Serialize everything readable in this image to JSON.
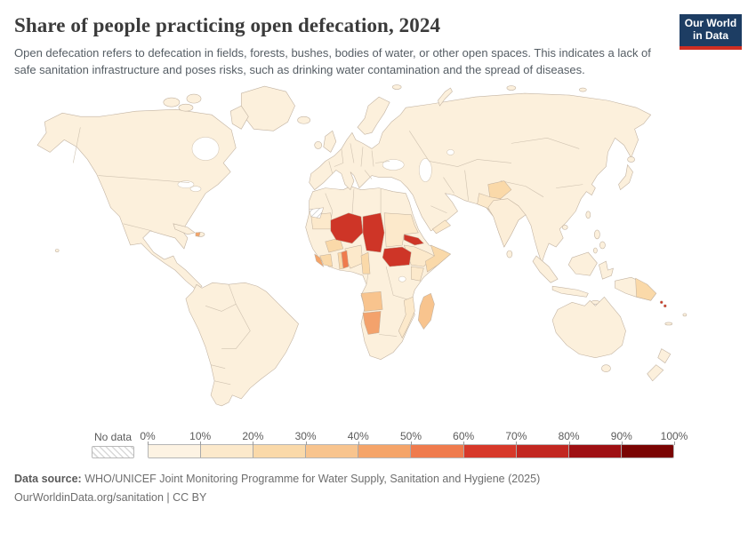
{
  "header": {
    "title": "Share of people practicing open defecation, 2024",
    "subtitle": "Open defecation refers to defecation in fields, forests, bushes, bodies of water, or other open spaces. This indicates a lack of safe sanitation infrastructure and poses risks, such as drinking water contamination and the spread of diseases.",
    "logo_line1": "Our World",
    "logo_line2": "in Data",
    "logo_bg": "#1d3d63",
    "logo_accent": "#cf2e22"
  },
  "legend": {
    "no_data_label": "No data",
    "tick_labels": [
      "0%",
      "10%",
      "20%",
      "30%",
      "40%",
      "50%",
      "60%",
      "70%",
      "80%",
      "90%",
      "100%"
    ],
    "bin_colors": [
      "#FDF3E3",
      "#FCE9CB",
      "#FAD9A9",
      "#F8C48E",
      "#F5A469",
      "#EF7B4D",
      "#D7392A",
      "#C22721",
      "#9E1013",
      "#7A0403"
    ]
  },
  "map": {
    "ocean_color": "#ffffff",
    "base_land_color": "#FCF0DC",
    "border_color": "#c3b4a3",
    "no_data_fill": "hatch",
    "country_fills": {
      "niger": "#CE3527",
      "chad": "#CE3527",
      "south-sudan": "#CE3527",
      "eritrea": "#CE3527",
      "solomon-islands": "#CE3527",
      "benin": "#EF7B4D",
      "liberia": "#F5A469",
      "haiti": "#F5A469",
      "namibia": "#F3A26C",
      "angola": "#F8C48E",
      "madagascar": "#F8C48E",
      "togo": "#FAD9A9",
      "burkina-faso": "#FAD9A9",
      "cote-divoire": "#FAD9A9",
      "somalia": "#FAD9A9",
      "cameroon": "#FAD9A9",
      "afghanistan": "#FAD9A9",
      "papua-new-guinea": "#FAD9A9",
      "mauritania": "#FCE9CB",
      "nigeria": "#FCE9CB",
      "sudan": "#FCE9CB",
      "ethiopia": "#FCE9CB",
      "kenya": "#FCE9CB",
      "mozambique": "#FCE9CB",
      "yemen": "#FCE9CB",
      "pakistan": "#FCE9CB",
      "india": "#FCEED8",
      "western-sahara": "hatch"
    }
  },
  "footer": {
    "source_label": "Data source:",
    "source_text": "WHO/UNICEF Joint Monitoring Programme for Water Supply, Sanitation and Hygiene (2025)",
    "url": "OurWorldinData.org/sanitation",
    "divider": "|",
    "license": "CC BY"
  },
  "chart_data": {
    "type": "heatmap",
    "subtype": "choropleth-world-map",
    "title": "Share of people practicing open defecation, 2024",
    "unit": "%",
    "legend_bins": [
      {
        "range": "0-10%",
        "color": "#FDF3E3"
      },
      {
        "range": "10-20%",
        "color": "#FCE9CB"
      },
      {
        "range": "20-30%",
        "color": "#FAD9A9"
      },
      {
        "range": "30-40%",
        "color": "#F8C48E"
      },
      {
        "range": "40-50%",
        "color": "#F5A469"
      },
      {
        "range": "50-60%",
        "color": "#EF7B4D"
      },
      {
        "range": "60-70%",
        "color": "#D7392A"
      },
      {
        "range": "70-80%",
        "color": "#C22721"
      },
      {
        "range": "80-90%",
        "color": "#9E1013"
      },
      {
        "range": "90-100%",
        "color": "#7A0403"
      }
    ],
    "values": {
      "Niger": "60-70%",
      "Chad": "60-70%",
      "South Sudan": "60-70%",
      "Eritrea": "60-70%",
      "Solomon Islands": "60-70%",
      "Benin": "50-60%",
      "Namibia": "40-50%",
      "Liberia": "40-50%",
      "Haiti": "40-50%",
      "Angola": "30-40%",
      "Madagascar": "30-40%",
      "Togo": "20-30%",
      "Burkina Faso": "20-30%",
      "Cote d'Ivoire": "20-30%",
      "Somalia": "20-30%",
      "Cameroon": "20-30%",
      "Afghanistan": "20-30%",
      "Papua New Guinea": "20-30%",
      "Mauritania": "10-20%",
      "Nigeria": "10-20%",
      "Sudan": "10-20%",
      "Ethiopia": "10-20%",
      "Kenya": "10-20%",
      "Mozambique": "10-20%",
      "Yemen": "10-20%",
      "Pakistan": "10-20%",
      "India": "0-10%",
      "Western Sahara": "No data",
      "Most other countries": "0-10%"
    }
  }
}
